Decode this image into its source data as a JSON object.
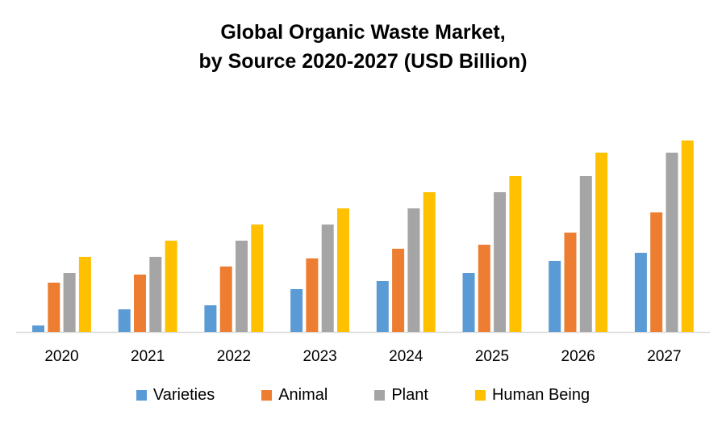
{
  "chart_data": {
    "type": "bar",
    "title_lines": [
      "Global Organic Waste Market,",
      "by Source 2020-2027 (USD Billion)"
    ],
    "categories": [
      "2020",
      "2021",
      "2022",
      "2023",
      "2024",
      "2025",
      "2026",
      "2027"
    ],
    "series": [
      {
        "name": "Varieties",
        "color": "#5b9bd5",
        "values": [
          8,
          28,
          33,
          53,
          63,
          73,
          88,
          98
        ]
      },
      {
        "name": "Animal",
        "color": "#ed7d31",
        "values": [
          61,
          71,
          81,
          91,
          103,
          108,
          123,
          148
        ]
      },
      {
        "name": "Plant",
        "color": "#a5a5a5",
        "values": [
          73,
          93,
          113,
          133,
          153,
          173,
          193,
          222
        ]
      },
      {
        "name": "Human Being",
        "color": "#ffc000",
        "values": [
          93,
          113,
          133,
          153,
          173,
          193,
          222,
          237
        ]
      }
    ],
    "ylim": [
      0,
      250
    ],
    "grid": false,
    "y_axis_shown": false,
    "legend_position": "bottom"
  }
}
